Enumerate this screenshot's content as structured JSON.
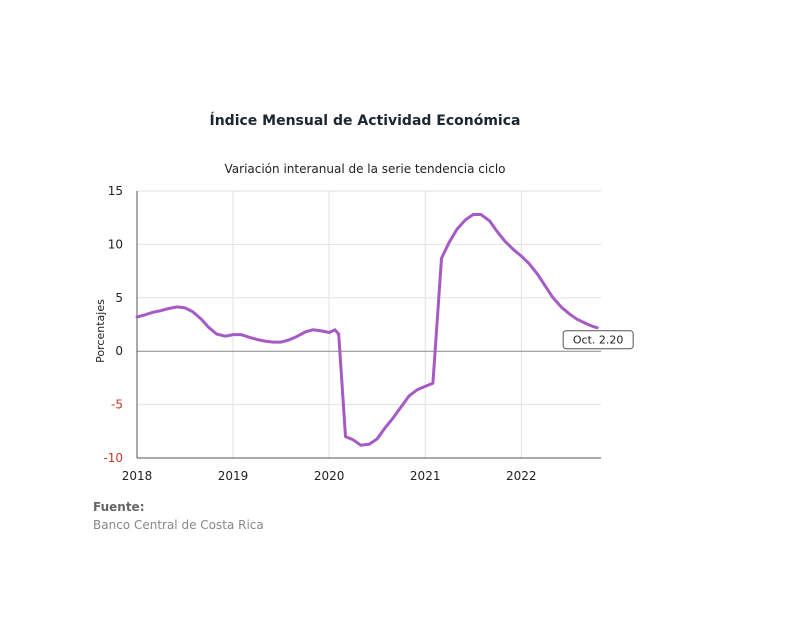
{
  "chart_data": {
    "type": "line",
    "title": "Índice Mensual de  Actividad Económica",
    "subtitle": "Variación interanual de la serie tendencia ciclo",
    "ylabel": "Porcentajes",
    "xlabel": "",
    "ylim": [
      -10,
      15
    ],
    "yticks": [
      "15",
      "10",
      "5",
      "0",
      "-5",
      "-10"
    ],
    "yticks_values": [
      15,
      10,
      5,
      0,
      -5,
      -10
    ],
    "xlim": [
      2018,
      2022.83
    ],
    "xticks": [
      "2018",
      "2019",
      "2020",
      "2021",
      "2022"
    ],
    "xticks_values": [
      2018,
      2019,
      2020,
      2021,
      2022
    ],
    "grid": true,
    "legend": "none",
    "series_color": "#a65bc4",
    "annotation": "Oct. 2.20",
    "series": [
      {
        "points": [
          [
            2018.0,
            3.2
          ],
          [
            2018.08,
            3.4
          ],
          [
            2018.17,
            3.65
          ],
          [
            2018.25,
            3.8
          ],
          [
            2018.33,
            4.0
          ],
          [
            2018.42,
            4.15
          ],
          [
            2018.5,
            4.05
          ],
          [
            2018.58,
            3.7
          ],
          [
            2018.67,
            3.0
          ],
          [
            2018.75,
            2.2
          ],
          [
            2018.83,
            1.6
          ],
          [
            2018.92,
            1.4
          ],
          [
            2019.0,
            1.55
          ],
          [
            2019.08,
            1.55
          ],
          [
            2019.17,
            1.3
          ],
          [
            2019.25,
            1.1
          ],
          [
            2019.33,
            0.95
          ],
          [
            2019.42,
            0.85
          ],
          [
            2019.5,
            0.85
          ],
          [
            2019.58,
            1.05
          ],
          [
            2019.67,
            1.4
          ],
          [
            2019.75,
            1.8
          ],
          [
            2019.83,
            2.0
          ],
          [
            2019.92,
            1.9
          ],
          [
            2020.0,
            1.75
          ],
          [
            2020.06,
            2.0
          ],
          [
            2020.1,
            1.6
          ],
          [
            2020.17,
            -8.0
          ],
          [
            2020.25,
            -8.3
          ],
          [
            2020.33,
            -8.8
          ],
          [
            2020.42,
            -8.7
          ],
          [
            2020.5,
            -8.2
          ],
          [
            2020.58,
            -7.2
          ],
          [
            2020.67,
            -6.2
          ],
          [
            2020.75,
            -5.2
          ],
          [
            2020.83,
            -4.2
          ],
          [
            2020.92,
            -3.6
          ],
          [
            2021.0,
            -3.3
          ],
          [
            2021.08,
            -3.0
          ],
          [
            2021.17,
            8.7
          ],
          [
            2021.25,
            10.2
          ],
          [
            2021.33,
            11.4
          ],
          [
            2021.42,
            12.3
          ],
          [
            2021.5,
            12.8
          ],
          [
            2021.58,
            12.8
          ],
          [
            2021.67,
            12.2
          ],
          [
            2021.75,
            11.2
          ],
          [
            2021.83,
            10.3
          ],
          [
            2021.92,
            9.5
          ],
          [
            2022.0,
            8.9
          ],
          [
            2022.08,
            8.2
          ],
          [
            2022.17,
            7.2
          ],
          [
            2022.25,
            6.1
          ],
          [
            2022.33,
            5.0
          ],
          [
            2022.42,
            4.1
          ],
          [
            2022.5,
            3.5
          ],
          [
            2022.58,
            3.0
          ],
          [
            2022.67,
            2.6
          ],
          [
            2022.75,
            2.3
          ],
          [
            2022.79,
            2.2
          ]
        ]
      }
    ]
  },
  "source": {
    "label": "Fuente:",
    "text": "Banco Central de Costa Rica"
  }
}
